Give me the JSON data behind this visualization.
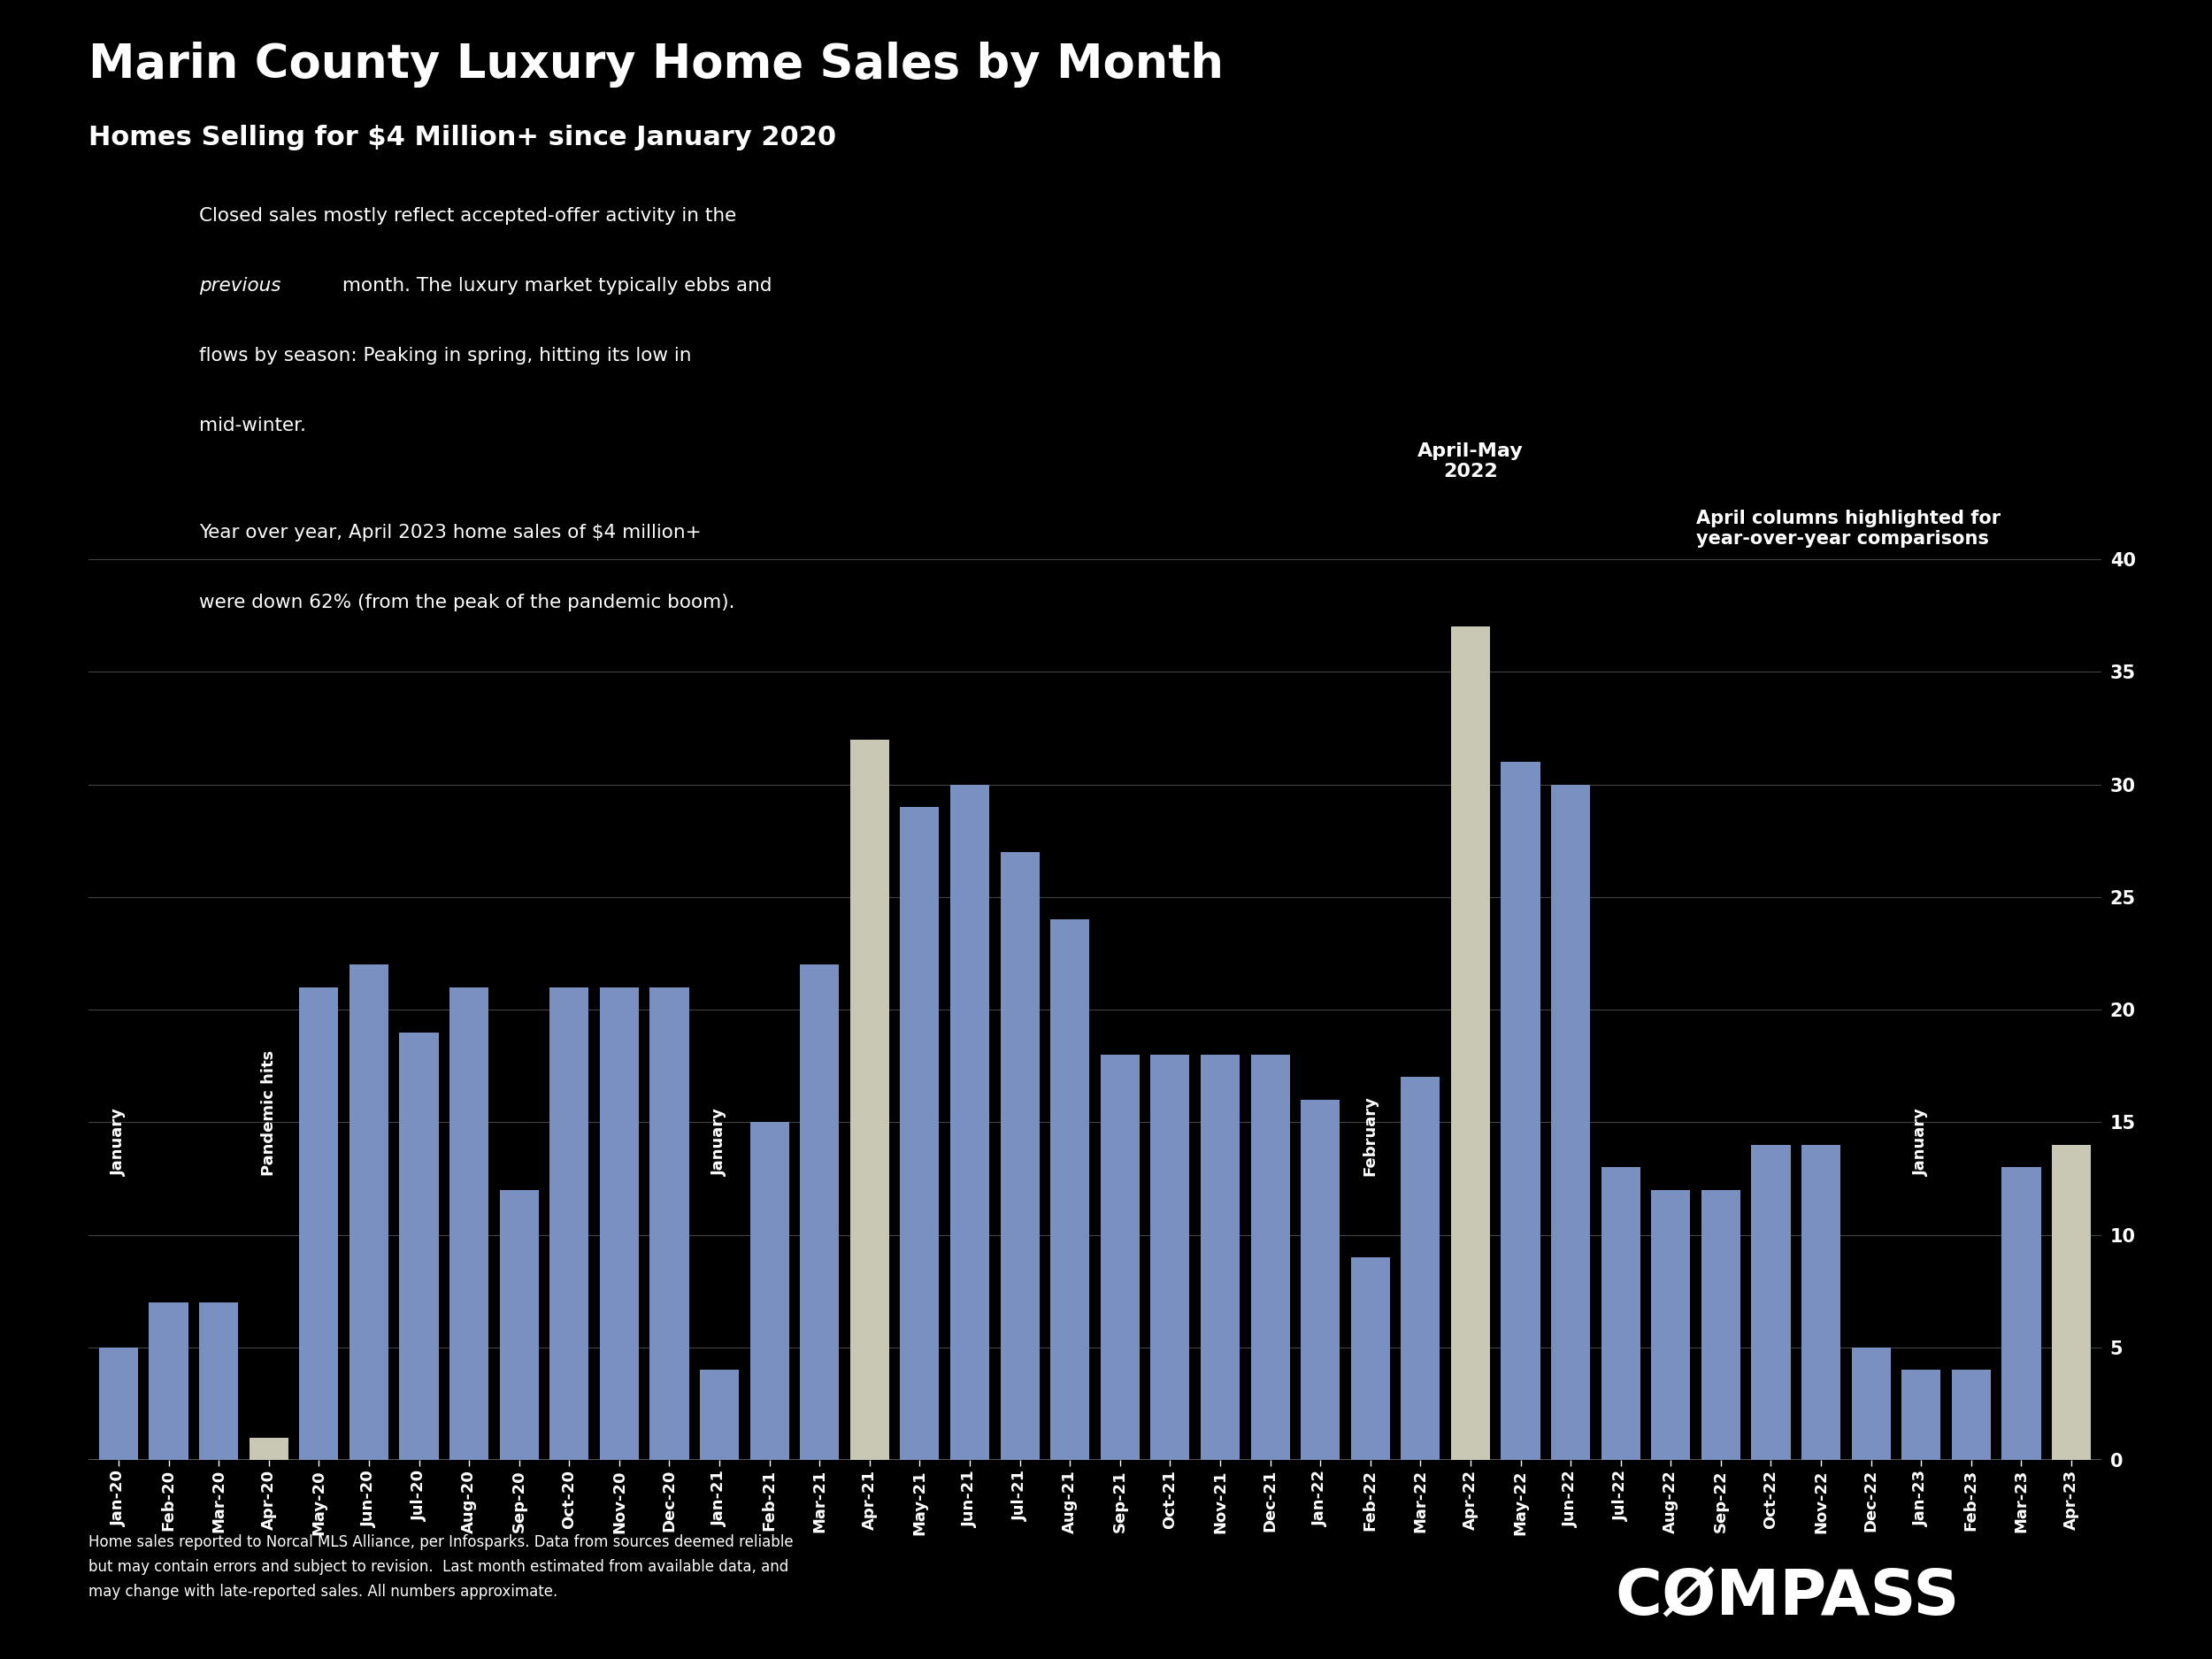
{
  "title": "Marin County Luxury Home Sales by Month",
  "subtitle": "Homes Selling for $4 Million+ since January 2020",
  "background_color": "#000000",
  "bar_color": "#7a90c0",
  "highlight_color": "#c8c8b4",
  "text_color": "#ffffff",
  "categories": [
    "Jan-20",
    "Feb-20",
    "Mar-20",
    "Apr-20",
    "May-20",
    "Jun-20",
    "Jul-20",
    "Aug-20",
    "Sep-20",
    "Oct-20",
    "Nov-20",
    "Dec-20",
    "Jan-21",
    "Feb-21",
    "Mar-21",
    "Apr-21",
    "May-21",
    "Jun-21",
    "Jul-21",
    "Aug-21",
    "Sep-21",
    "Oct-21",
    "Nov-21",
    "Dec-21",
    "Jan-22",
    "Feb-22",
    "Mar-22",
    "Apr-22",
    "May-22",
    "Jun-22",
    "Jul-22",
    "Aug-22",
    "Sep-22",
    "Oct-22",
    "Nov-22",
    "Dec-22",
    "Jan-23",
    "Feb-23",
    "Mar-23",
    "Apr-23"
  ],
  "values": [
    5,
    7,
    7,
    1,
    21,
    22,
    19,
    21,
    12,
    21,
    21,
    21,
    4,
    15,
    22,
    32,
    29,
    30,
    27,
    24,
    18,
    18,
    18,
    18,
    16,
    9,
    17,
    37,
    31,
    30,
    13,
    12,
    12,
    14,
    14,
    5,
    4,
    4,
    13,
    14
  ],
  "highlight_indices": [
    3,
    15,
    27,
    39
  ],
  "ylim": [
    0,
    42
  ],
  "yticks": [
    0,
    5,
    10,
    15,
    20,
    25,
    30,
    35,
    40
  ],
  "footer_text": "Home sales reported to Norcal MLS Alliance, per Infosparks. Data from sources deemed reliable\nbut may contain errors and subject to revision.  Last month estimated from available data, and\nmay change with late-reported sales. All numbers approximate."
}
